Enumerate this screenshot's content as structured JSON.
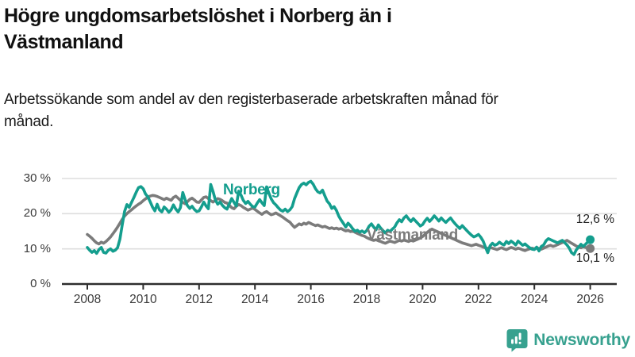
{
  "header": {
    "title": "Högre ungdomsarbetslöshet i Norberg än i Västmanland",
    "subtitle": "Arbetssökande som andel av den registerbaserade arbetskraften månad för månad."
  },
  "chart": {
    "series_labels": {
      "norberg": "Norberg",
      "vastmanland": "Västmanland"
    },
    "end_labels": {
      "norberg": "12,6 %",
      "vastmanland": "10,1 %"
    }
  },
  "footer": {
    "brand": "Newsworthy"
  },
  "colors": {
    "norberg_line": "#149e8e",
    "vastmanland_line": "#7b7b7b",
    "brand_teal": "#37a18f",
    "grid": "#dedede",
    "axis": "#2d2d2d",
    "tick_label": "#3a3a3a"
  },
  "chart_data": {
    "type": "line",
    "title": "Högre ungdomsarbetslöshet i Norberg än i Västmanland",
    "subtitle": "Arbetssökande som andel av den registerbaserade arbetskraften månad för månad.",
    "unit": "%",
    "frequency": "monthly",
    "x_start": "2008-01",
    "x_end": "2026-01",
    "ylim": [
      0,
      30
    ],
    "yticks": [
      "0 %",
      "10 %",
      "20 %",
      "30 %"
    ],
    "xticks": [
      2008,
      2010,
      2012,
      2014,
      2016,
      2018,
      2020,
      2022,
      2024,
      2026
    ],
    "grid": "horizontal",
    "legend_position": "inline-labels",
    "series": [
      {
        "name": "Västmanland",
        "color": "#7b7b7b",
        "end_value": 10.1,
        "end_value_label": "10,1 %",
        "values": [
          14.1,
          13.6,
          13.0,
          12.3,
          11.7,
          11.4,
          11.9,
          11.6,
          12.1,
          12.7,
          13.4,
          14.3,
          15.2,
          16.2,
          17.3,
          18.4,
          19.3,
          20.0,
          20.6,
          21.1,
          21.7,
          22.2,
          22.7,
          23.1,
          23.7,
          24.2,
          24.7,
          25.0,
          25.2,
          25.1,
          24.9,
          24.6,
          24.3,
          24.0,
          24.4,
          24.1,
          23.8,
          24.6,
          25.0,
          24.4,
          23.8,
          23.2,
          22.8,
          23.4,
          24.1,
          24.4,
          23.9,
          23.3,
          23.2,
          23.9,
          24.6,
          24.8,
          24.3,
          23.7,
          23.3,
          23.8,
          24.3,
          24.1,
          23.7,
          23.2,
          23.0,
          22.4,
          21.7,
          21.4,
          22.1,
          22.6,
          22.3,
          21.8,
          21.4,
          21.0,
          21.3,
          21.6,
          21.2,
          20.7,
          20.2,
          19.8,
          20.3,
          20.6,
          20.1,
          19.7,
          19.9,
          20.2,
          19.8,
          19.4,
          19.0,
          18.5,
          18.0,
          17.6,
          16.8,
          16.1,
          16.6,
          17.1,
          16.8,
          17.3,
          17.0,
          17.5,
          17.2,
          16.9,
          16.6,
          16.8,
          16.5,
          16.2,
          16.4,
          16.1,
          15.8,
          16.0,
          15.7,
          15.9,
          15.6,
          15.8,
          15.4,
          15.1,
          15.3,
          14.9,
          15.1,
          14.7,
          14.4,
          14.1,
          13.8,
          13.6,
          13.2,
          12.9,
          12.6,
          12.4,
          12.6,
          12.3,
          12.1,
          11.8,
          11.6,
          11.9,
          12.2,
          12.0,
          11.8,
          12.1,
          12.4,
          12.2,
          12.5,
          12.3,
          12.1,
          12.4,
          12.2,
          12.5,
          12.8,
          13.1,
          13.5,
          14.1,
          14.7,
          15.2,
          15.6,
          15.3,
          15.0,
          14.7,
          14.4,
          14.1,
          13.8,
          13.5,
          13.2,
          12.9,
          12.6,
          12.3,
          12.0,
          11.7,
          11.5,
          11.3,
          11.1,
          10.9,
          11.1,
          11.3,
          11.0,
          10.8,
          10.5,
          10.3,
          10.1,
          10.4,
          10.2,
          10.0,
          9.8,
          10.1,
          10.3,
          10.0,
          9.8,
          10.1,
          10.4,
          10.2,
          9.9,
          10.2,
          10.0,
          9.7,
          9.5,
          9.8,
          10.0,
          10.2,
          10.0,
          10.3,
          10.1,
          9.9,
          10.2,
          10.5,
          10.8,
          11.0,
          10.7,
          10.9,
          11.2,
          11.5,
          11.8,
          12.1,
          12.4,
          12.0,
          11.6,
          11.2,
          10.8,
          10.5,
          10.3,
          10.6,
          10.4,
          10.2,
          10.1
        ]
      },
      {
        "name": "Norberg",
        "color": "#149e8e",
        "end_value": 12.6,
        "end_value_label": "12,6 %",
        "values": [
          10.4,
          9.6,
          9.0,
          9.5,
          8.7,
          9.8,
          10.4,
          9.0,
          8.8,
          9.6,
          10.0,
          9.3,
          9.6,
          10.3,
          12.8,
          16.8,
          20.6,
          22.6,
          21.8,
          23.2,
          24.6,
          26.1,
          27.4,
          27.7,
          27.1,
          25.6,
          24.8,
          23.4,
          21.9,
          20.8,
          22.7,
          21.1,
          20.5,
          21.9,
          21.3,
          20.4,
          21.1,
          22.5,
          21.3,
          20.5,
          21.7,
          26.0,
          24.0,
          22.3,
          21.5,
          22.1,
          21.2,
          20.6,
          20.8,
          21.9,
          23.3,
          22.2,
          21.4,
          28.3,
          26.3,
          23.9,
          22.7,
          23.3,
          22.4,
          21.7,
          21.3,
          22.8,
          24.3,
          23.2,
          22.2,
          26.4,
          25.3,
          23.8,
          22.9,
          23.5,
          22.7,
          22.0,
          21.9,
          23.0,
          24.0,
          23.1,
          22.3,
          27.6,
          25.8,
          24.2,
          23.1,
          22.5,
          21.7,
          21.0,
          20.7,
          21.3,
          20.6,
          21.1,
          22.0,
          24.3,
          25.9,
          27.4,
          28.3,
          28.7,
          28.2,
          28.9,
          29.2,
          28.4,
          27.1,
          26.2,
          25.9,
          26.7,
          25.1,
          23.6,
          22.8,
          21.5,
          22.0,
          20.9,
          19.3,
          18.2,
          17.2,
          16.2,
          17.3,
          16.6,
          15.7,
          15.0,
          15.3,
          14.7,
          15.1,
          14.6,
          15.2,
          16.4,
          17.1,
          16.2,
          15.4,
          16.8,
          15.9,
          15.2,
          14.5,
          15.3,
          14.9,
          15.6,
          16.2,
          17.4,
          18.3,
          17.7,
          18.8,
          19.4,
          18.5,
          17.8,
          18.6,
          17.9,
          17.2,
          16.5,
          16.9,
          17.9,
          18.7,
          17.8,
          18.5,
          19.4,
          18.7,
          17.9,
          18.8,
          18.1,
          17.5,
          18.2,
          18.8,
          17.9,
          17.1,
          16.4,
          15.8,
          16.6,
          15.9,
          15.2,
          14.5,
          13.9,
          13.4,
          13.7,
          14.1,
          13.3,
          12.2,
          10.5,
          8.9,
          10.9,
          11.6,
          11.0,
          11.3,
          11.9,
          11.4,
          11.1,
          12.1,
          11.5,
          12.2,
          11.7,
          11.1,
          12.2,
          11.6,
          11.0,
          11.4,
          10.8,
          10.3,
          9.9,
          9.8,
          10.5,
          9.4,
          10.7,
          11.1,
          12.3,
          12.9,
          12.6,
          12.3,
          12.0,
          11.7,
          12.1,
          12.4,
          11.8,
          11.1,
          10.2,
          8.9,
          8.4,
          9.7,
          10.5,
          11.3,
          10.7,
          11.3,
          12.0,
          12.6
        ]
      }
    ]
  }
}
